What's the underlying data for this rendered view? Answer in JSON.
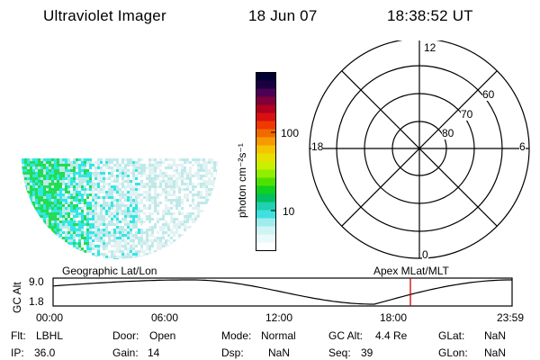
{
  "header": {
    "title": "Ultraviolet Imager",
    "date": "18 Jun 07",
    "time": "18:38:52 UT"
  },
  "colorbar": {
    "unit_label": "photon cm⁻²s⁻¹",
    "ticks": [
      "100",
      "10"
    ],
    "colors": [
      "#000033",
      "#1a0040",
      "#4d0055",
      "#80003a",
      "#b00020",
      "#d81010",
      "#ee3a00",
      "#f06a00",
      "#f59a00",
      "#f5c400",
      "#e8e000",
      "#c8f000",
      "#90ee00",
      "#50e000",
      "#10d020",
      "#00c060",
      "#20d0b0",
      "#40e0e0",
      "#a0ecec",
      "#d0f4f4",
      "#e8fafa",
      "#ffffff"
    ]
  },
  "polar_plot": {
    "mlt_labels": {
      "top": "12",
      "left": "18",
      "right": "6",
      "bottom": "0"
    },
    "lat_labels": [
      "60",
      "70",
      "80"
    ]
  },
  "map": {
    "palette": {
      "green": "#22dd55",
      "cyan": "#33e6e6",
      "light": "#bfe9e9",
      "faint": "#e2f2f2"
    }
  },
  "timeline": {
    "left_label": "Geographic Lat/Lon",
    "right_label": "Apex MLat/MLT",
    "y_axis_label": "GC Alt",
    "y_ticks": [
      "9.0",
      "1.8"
    ],
    "x_ticks": [
      "00:00",
      "06:00",
      "12:00",
      "18:00",
      "23:59"
    ],
    "marker_color": "#cc0000",
    "marker_time": "18:38:52"
  },
  "info": {
    "flt": {
      "label": "Flt:",
      "value": "LBHL"
    },
    "ip": {
      "label": "IP:",
      "value": "36.0"
    },
    "door": {
      "label": "Door:",
      "value": "Open"
    },
    "gain": {
      "label": "Gain:",
      "value": "14"
    },
    "mode": {
      "label": "Mode:",
      "value": "Normal"
    },
    "dsp": {
      "label": "Dsp:",
      "value": "NaN"
    },
    "gcalt": {
      "label": "GC Alt:",
      "value": "4.4 Re"
    },
    "seq": {
      "label": "Seq:",
      "value": "39"
    },
    "glat": {
      "label": "GLat:",
      "value": "NaN"
    },
    "glon": {
      "label": "GLon:",
      "value": "NaN"
    }
  }
}
